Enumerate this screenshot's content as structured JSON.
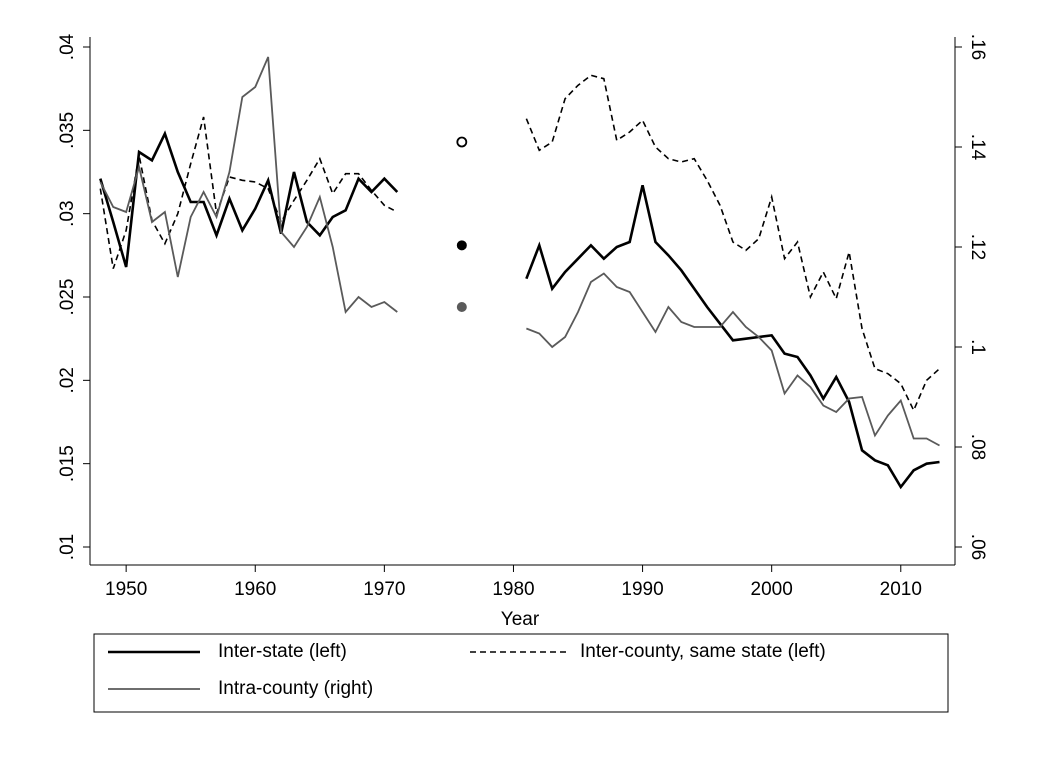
{
  "chart_data": {
    "type": "line",
    "x_label": "Year",
    "x": [
      1948,
      1949,
      1950,
      1951,
      1952,
      1953,
      1954,
      1955,
      1956,
      1957,
      1958,
      1959,
      1960,
      1961,
      1962,
      1963,
      1964,
      1965,
      1966,
      1967,
      1968,
      1969,
      1970,
      1971,
      1972,
      1973,
      1974,
      1975,
      1976,
      1977,
      1978,
      1979,
      1980,
      1981,
      1982,
      1983,
      1984,
      1985,
      1986,
      1987,
      1988,
      1989,
      1990,
      1991,
      1992,
      1993,
      1994,
      1995,
      1996,
      1997,
      1998,
      1999,
      2000,
      2001,
      2002,
      2003,
      2004,
      2005,
      2006,
      2007,
      2008,
      2009,
      2010,
      2011,
      2012,
      2013
    ],
    "series": [
      {
        "name": "Inter-state (left)",
        "color": "#000000",
        "width": 2.6,
        "dash": false,
        "axis": "y",
        "values": [
          0.0321,
          0.0295,
          0.0268,
          0.0337,
          0.0332,
          0.0348,
          0.0325,
          0.0307,
          0.0307,
          0.0287,
          0.0309,
          0.029,
          0.0303,
          0.032,
          0.0288,
          0.0325,
          0.0295,
          0.0287,
          0.0298,
          0.0302,
          0.0321,
          0.0313,
          0.0321,
          0.0313,
          null,
          null,
          null,
          null,
          0.0281,
          null,
          null,
          null,
          null,
          0.0261,
          0.0281,
          0.0255,
          0.0265,
          0.0273,
          0.0281,
          0.0273,
          0.028,
          0.0283,
          0.0317,
          0.0283,
          0.0275,
          0.0266,
          0.0255,
          0.0244,
          0.0234,
          0.0224,
          0.0225,
          0.0226,
          0.0227,
          0.0216,
          0.0214,
          0.0203,
          0.0189,
          0.0202,
          0.0187,
          0.0158,
          0.0152,
          0.0149,
          0.0136,
          0.0146,
          0.015,
          0.0151
        ]
      },
      {
        "name": "Inter-county, same state (left)",
        "color": "#000000",
        "width": 1.6,
        "dash": true,
        "axis": "y",
        "values": [
          0.0315,
          0.0267,
          0.029,
          0.0335,
          0.0296,
          0.0282,
          0.03,
          0.033,
          0.0358,
          0.03,
          0.0322,
          0.032,
          0.0319,
          0.0315,
          0.0295,
          0.0308,
          0.032,
          0.0333,
          0.0312,
          0.0324,
          0.0324,
          0.0314,
          0.0305,
          0.0301,
          null,
          null,
          null,
          null,
          0.0343,
          null,
          null,
          null,
          null,
          0.0357,
          0.0338,
          0.0343,
          0.0369,
          0.0377,
          0.0383,
          0.0381,
          0.0344,
          0.0349,
          0.0356,
          0.034,
          0.0333,
          0.0331,
          0.0333,
          0.032,
          0.0305,
          0.0283,
          0.0278,
          0.0285,
          0.031,
          0.0273,
          0.0283,
          0.025,
          0.0265,
          0.0249,
          0.0277,
          0.0231,
          0.0207,
          0.0204,
          0.0198,
          0.0182,
          0.02,
          0.0207
        ]
      },
      {
        "name": "Intra-county (right)",
        "color": "#5a5a5a",
        "width": 1.8,
        "dash": false,
        "axis": "y2",
        "values": [
          0.133,
          0.128,
          0.127,
          0.136,
          0.125,
          0.127,
          0.114,
          0.126,
          0.131,
          0.126,
          0.135,
          0.15,
          0.152,
          0.158,
          0.123,
          0.12,
          0.124,
          0.13,
          0.12,
          0.107,
          0.11,
          0.108,
          0.109,
          0.107,
          null,
          null,
          null,
          null,
          0.108,
          null,
          null,
          null,
          null,
          0.1037,
          0.1027,
          0.1,
          0.102,
          0.107,
          0.113,
          0.1147,
          0.112,
          0.111,
          0.107,
          0.103,
          0.108,
          0.105,
          0.104,
          0.104,
          0.104,
          0.107,
          0.104,
          0.102,
          0.0993,
          0.0907,
          0.0943,
          0.092,
          0.0883,
          0.087,
          0.0897,
          0.09,
          0.0823,
          0.0863,
          0.0893,
          0.0817,
          0.0817,
          0.0803
        ]
      }
    ],
    "xlim": [
      1947.2,
      2014.2
    ],
    "xticks": [
      1950,
      1960,
      1970,
      1980,
      1990,
      2000,
      2010
    ],
    "ylim": [
      0.01,
      0.04
    ],
    "yticks": [
      {
        "value": 0.01,
        "label": ".01"
      },
      {
        "value": 0.015,
        "label": ".015"
      },
      {
        "value": 0.02,
        "label": ".02"
      },
      {
        "value": 0.025,
        "label": ".025"
      },
      {
        "value": 0.03,
        "label": ".03"
      },
      {
        "value": 0.035,
        "label": ".035"
      },
      {
        "value": 0.04,
        "label": ".04"
      }
    ],
    "y2lim": [
      0.06,
      0.16
    ],
    "y2ticks": [
      {
        "value": 0.06,
        "label": ".06"
      },
      {
        "value": 0.08,
        "label": ".08"
      },
      {
        "value": 0.1,
        "label": ".1"
      },
      {
        "value": 0.12,
        "label": ".12"
      },
      {
        "value": 0.14,
        "label": ".14"
      },
      {
        "value": 0.16,
        "label": ".16"
      }
    ],
    "grid": false,
    "legend": "bottom"
  }
}
